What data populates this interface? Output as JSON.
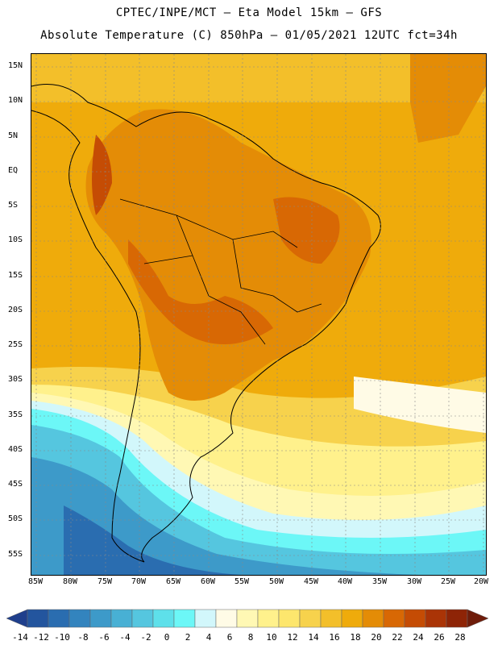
{
  "header": {
    "line1": "CPTEC/INPE/MCT –  Eta Model 15km – GFS",
    "line2": "Absolute Temperature (C) 850hPa – 01/05/2021 12UTC fct=34h"
  },
  "map": {
    "latitude_labels": [
      "15N",
      "10N",
      "5N",
      "EQ",
      "5S",
      "10S",
      "15S",
      "20S",
      "25S",
      "30S",
      "35S",
      "40S",
      "45S",
      "50S",
      "55S"
    ],
    "longitude_labels": [
      "85W",
      "80W",
      "75W",
      "70W",
      "65W",
      "60W",
      "55W",
      "50W",
      "45W",
      "40W",
      "35W",
      "30W",
      "25W",
      "20W"
    ]
  },
  "colorbar": {
    "labels": [
      "-14",
      "-12",
      "-10",
      "-8",
      "-6",
      "-4",
      "-2",
      "0",
      "2",
      "4",
      "6",
      "8",
      "10",
      "12",
      "14",
      "16",
      "18",
      "20",
      "22",
      "24",
      "26",
      "28"
    ],
    "colors": [
      "#1f3f8c",
      "#23559e",
      "#2a6db0",
      "#3384be",
      "#3d9ac9",
      "#48b0d4",
      "#55c6df",
      "#5ee0ea",
      "#6cf7f7",
      "#d2f7fb",
      "#fffbe6",
      "#fff8b4",
      "#fff18c",
      "#fde66d",
      "#f7d24c",
      "#f3bf2a",
      "#efab0b",
      "#e48c06",
      "#d86804",
      "#c54c04",
      "#aa3406",
      "#8e2406",
      "#6e1c0a"
    ]
  }
}
